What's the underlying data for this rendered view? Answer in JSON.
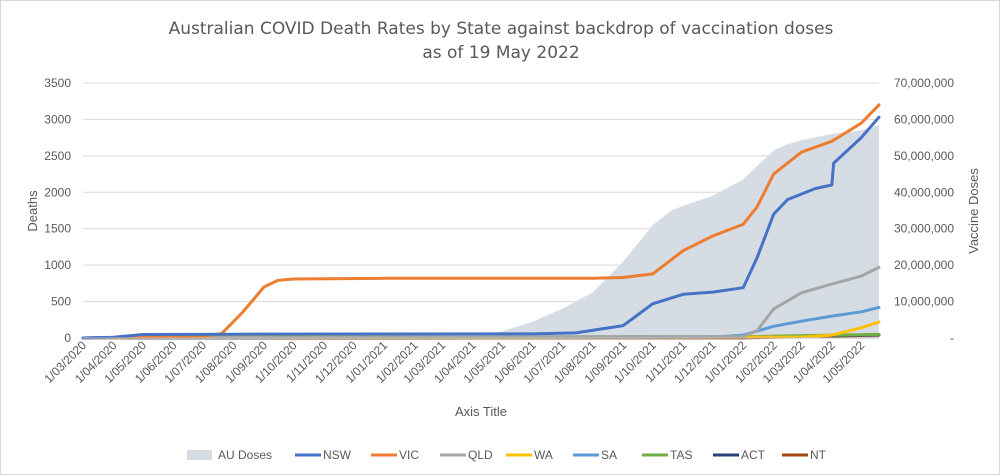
{
  "chart_data": {
    "type": "line",
    "title": [
      "Australian COVID Death Rates by State against backdrop of vaccination doses",
      "as of 19 May 2022"
    ],
    "xlabel": "Axis Title",
    "ylabel": "Deaths",
    "y2label": "Vaccine Doses",
    "x_start": "2020-03-01",
    "x_end": "2022-05-19",
    "xticks": [
      "2020-03-01",
      "2020-04-01",
      "2020-05-01",
      "2020-06-01",
      "2020-07-01",
      "2020-08-01",
      "2020-09-01",
      "2020-10-01",
      "2020-11-01",
      "2020-12-01",
      "2021-01-01",
      "2021-02-01",
      "2021-03-01",
      "2021-04-01",
      "2021-05-01",
      "2021-06-01",
      "2021-07-01",
      "2021-08-01",
      "2021-09-01",
      "2021-10-01",
      "2021-11-01",
      "2021-12-01",
      "2022-01-01",
      "2022-02-01",
      "2022-03-01",
      "2022-04-01",
      "2022-05-01"
    ],
    "xtick_labels": [
      "1/03/2020",
      "1/04/2020",
      "1/05/2020",
      "1/06/2020",
      "1/07/2020",
      "1/08/2020",
      "1/09/2020",
      "1/10/2020",
      "1/11/2020",
      "1/12/2020",
      "1/01/2021",
      "1/02/2021",
      "1/03/2021",
      "1/04/2021",
      "1/05/2021",
      "1/06/2021",
      "1/07/2021",
      "1/08/2021",
      "1/09/2021",
      "1/10/2021",
      "1/11/2021",
      "1/12/2021",
      "1/01/2022",
      "1/02/2022",
      "1/03/2022",
      "1/04/2022",
      "1/05/2022"
    ],
    "ylim": [
      0,
      3500
    ],
    "yticks": [
      0,
      500,
      1000,
      1500,
      2000,
      2500,
      3000,
      3500
    ],
    "y2lim": [
      0,
      70000000
    ],
    "y2ticks": [
      0,
      10000000,
      20000000,
      30000000,
      40000000,
      50000000,
      60000000,
      70000000
    ],
    "y2tick_labels": [
      "-",
      "10,000,000",
      "20,000,000",
      "30,000,000",
      "40,000,000",
      "50,000,000",
      "60,000,000",
      "70,000,000"
    ],
    "grid": true,
    "legend_position": "bottom",
    "area_series": {
      "name": "AU Doses",
      "color": "#d6dce4",
      "points": [
        [
          "2021-02-22",
          0
        ],
        [
          "2021-04-01",
          400000
        ],
        [
          "2021-05-01",
          1800000
        ],
        [
          "2021-06-01",
          4500000
        ],
        [
          "2021-07-01",
          8000000
        ],
        [
          "2021-08-01",
          12500000
        ],
        [
          "2021-09-01",
          21000000
        ],
        [
          "2021-10-01",
          31000000
        ],
        [
          "2021-10-20",
          35000000
        ],
        [
          "2021-11-01",
          36300000
        ],
        [
          "2021-12-01",
          39000000
        ],
        [
          "2022-01-01",
          43500000
        ],
        [
          "2022-01-20",
          48500000
        ],
        [
          "2022-02-01",
          51500000
        ],
        [
          "2022-02-15",
          53200000
        ],
        [
          "2022-03-01",
          54300000
        ],
        [
          "2022-04-01",
          56000000
        ],
        [
          "2022-05-01",
          57000000
        ],
        [
          "2022-05-19",
          58500000
        ]
      ]
    },
    "series": [
      {
        "name": "NSW",
        "color": "#4472c4",
        "points": [
          [
            "2020-03-01",
            0
          ],
          [
            "2020-04-01",
            10
          ],
          [
            "2020-05-01",
            48
          ],
          [
            "2020-08-01",
            52
          ],
          [
            "2021-01-01",
            55
          ],
          [
            "2021-06-01",
            56
          ],
          [
            "2021-07-15",
            70
          ],
          [
            "2021-09-01",
            170
          ],
          [
            "2021-10-01",
            470
          ],
          [
            "2021-11-01",
            600
          ],
          [
            "2021-12-01",
            630
          ],
          [
            "2022-01-01",
            690
          ],
          [
            "2022-01-15",
            1100
          ],
          [
            "2022-02-01",
            1700
          ],
          [
            "2022-02-15",
            1900
          ],
          [
            "2022-03-15",
            2050
          ],
          [
            "2022-04-01",
            2100
          ],
          [
            "2022-04-03",
            2400
          ],
          [
            "2022-05-01",
            2750
          ],
          [
            "2022-05-19",
            3030
          ]
        ]
      },
      {
        "name": "VIC",
        "color": "#ed7d31",
        "points": [
          [
            "2020-03-01",
            0
          ],
          [
            "2020-07-01",
            20
          ],
          [
            "2020-07-20",
            60
          ],
          [
            "2020-08-10",
            350
          ],
          [
            "2020-09-01",
            700
          ],
          [
            "2020-09-15",
            790
          ],
          [
            "2020-10-01",
            810
          ],
          [
            "2021-01-01",
            820
          ],
          [
            "2021-08-01",
            820
          ],
          [
            "2021-09-01",
            830
          ],
          [
            "2021-10-01",
            880
          ],
          [
            "2021-11-01",
            1200
          ],
          [
            "2021-12-01",
            1400
          ],
          [
            "2022-01-01",
            1560
          ],
          [
            "2022-01-15",
            1800
          ],
          [
            "2022-02-01",
            2250
          ],
          [
            "2022-03-01",
            2550
          ],
          [
            "2022-04-01",
            2700
          ],
          [
            "2022-05-01",
            2950
          ],
          [
            "2022-05-19",
            3200
          ]
        ]
      },
      {
        "name": "QLD",
        "color": "#a5a5a5",
        "points": [
          [
            "2020-03-01",
            0
          ],
          [
            "2020-05-01",
            7
          ],
          [
            "2022-01-01",
            20
          ],
          [
            "2022-01-15",
            100
          ],
          [
            "2022-02-01",
            400
          ],
          [
            "2022-03-01",
            620
          ],
          [
            "2022-04-01",
            740
          ],
          [
            "2022-05-01",
            850
          ],
          [
            "2022-05-19",
            970
          ]
        ]
      },
      {
        "name": "WA",
        "color": "#ffc000",
        "points": [
          [
            "2020-03-01",
            0
          ],
          [
            "2020-05-01",
            9
          ],
          [
            "2022-03-01",
            12
          ],
          [
            "2022-04-01",
            40
          ],
          [
            "2022-05-01",
            140
          ],
          [
            "2022-05-19",
            220
          ]
        ]
      },
      {
        "name": "SA",
        "color": "#5b9bd5",
        "points": [
          [
            "2020-03-01",
            0
          ],
          [
            "2020-05-01",
            4
          ],
          [
            "2021-12-01",
            10
          ],
          [
            "2022-01-01",
            40
          ],
          [
            "2022-02-01",
            160
          ],
          [
            "2022-03-01",
            230
          ],
          [
            "2022-04-01",
            300
          ],
          [
            "2022-05-01",
            360
          ],
          [
            "2022-05-19",
            420
          ]
        ]
      },
      {
        "name": "TAS",
        "color": "#70ad47",
        "points": [
          [
            "2020-03-01",
            0
          ],
          [
            "2020-05-01",
            13
          ],
          [
            "2022-01-01",
            18
          ],
          [
            "2022-05-19",
            50
          ]
        ]
      },
      {
        "name": "ACT",
        "color": "#264478",
        "points": [
          [
            "2020-03-01",
            0
          ],
          [
            "2020-05-01",
            3
          ],
          [
            "2022-01-01",
            15
          ],
          [
            "2022-05-19",
            45
          ]
        ]
      },
      {
        "name": "NT",
        "color": "#9e480e",
        "points": [
          [
            "2020-03-01",
            0
          ],
          [
            "2022-01-01",
            2
          ],
          [
            "2022-05-19",
            40
          ]
        ]
      }
    ]
  }
}
